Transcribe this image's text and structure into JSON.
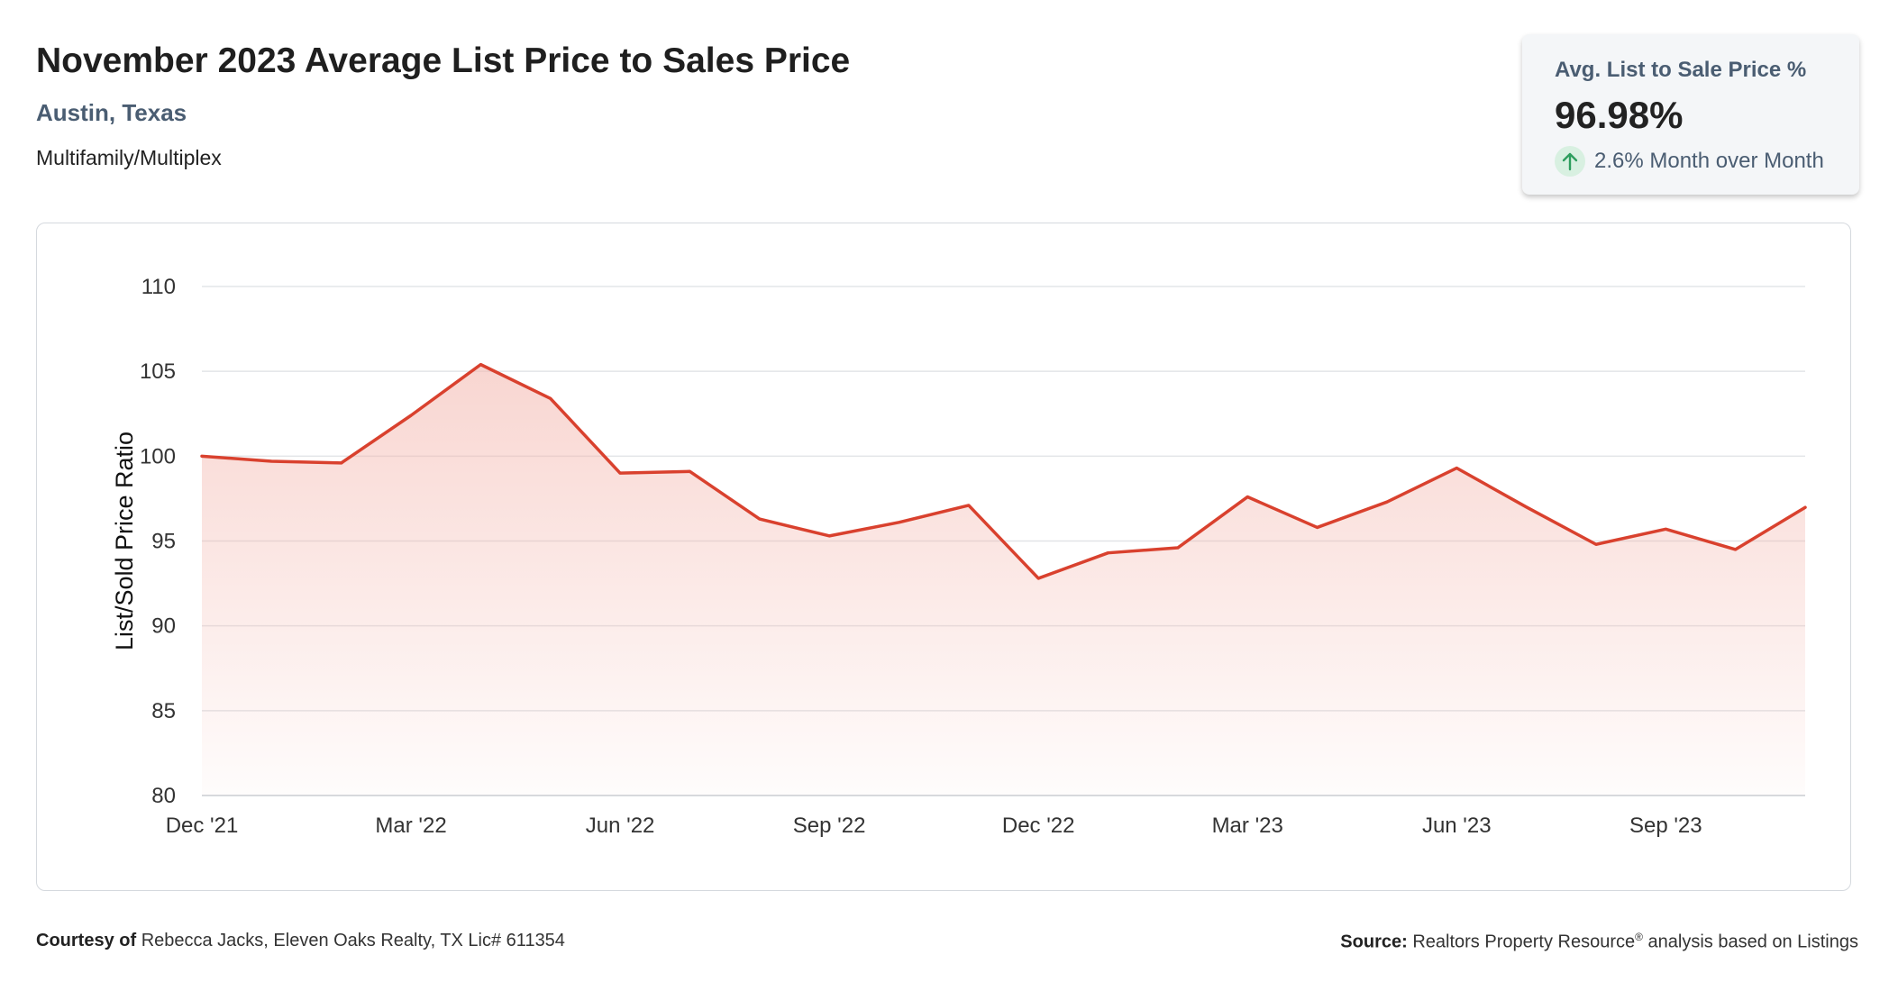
{
  "header": {
    "title": "November 2023 Average List Price to Sales Price",
    "location": "Austin, Texas",
    "category": "Multifamily/Multiplex"
  },
  "kpi": {
    "label": "Avg. List to Sale Price %",
    "value": "96.98%",
    "change": "2.6% Month over Month",
    "icon": "arrow-up-icon",
    "icon_color": "#2e9e5e",
    "icon_bg": "#d8f0e1"
  },
  "chart_data": {
    "type": "area",
    "ylabel": "List/Sold Price Ratio",
    "xlabel": "",
    "ylim": [
      80,
      110
    ],
    "yticks": [
      80,
      85,
      90,
      95,
      100,
      105,
      110
    ],
    "grid": true,
    "x": [
      "Dec '21",
      "Jan '22",
      "Feb '22",
      "Mar '22",
      "Apr '22",
      "May '22",
      "Jun '22",
      "Jul '22",
      "Aug '22",
      "Sep '22",
      "Oct '22",
      "Nov '22",
      "Dec '22",
      "Jan '23",
      "Feb '23",
      "Mar '23",
      "Apr '23",
      "May '23",
      "Jun '23",
      "Jul '23",
      "Aug '23",
      "Sep '23",
      "Oct '23",
      "Nov '23"
    ],
    "xtick_labels": [
      "Dec '21",
      "Mar '22",
      "Jun '22",
      "Sep '22",
      "Dec '22",
      "Mar '23",
      "Jun '23",
      "Sep '23"
    ],
    "series": [
      {
        "values": [
          100.0,
          99.7,
          99.6,
          102.4,
          105.4,
          103.4,
          99.0,
          99.1,
          96.3,
          95.3,
          96.1,
          97.1,
          92.8,
          94.3,
          94.6,
          97.6,
          95.8,
          97.3,
          99.3,
          97.0,
          94.8,
          95.7,
          94.5,
          96.98
        ],
        "color": "#d9412e",
        "fill_color": "#f3b4ab"
      }
    ]
  },
  "footer": {
    "courtesy_label": "Courtesy of",
    "courtesy_text": "Rebecca Jacks, Eleven Oaks Realty, TX Lic# 611354",
    "source_label": "Source:",
    "source_text": "Realtors Property Resource",
    "source_mark": "®",
    "source_suffix": "analysis based on Listings"
  }
}
